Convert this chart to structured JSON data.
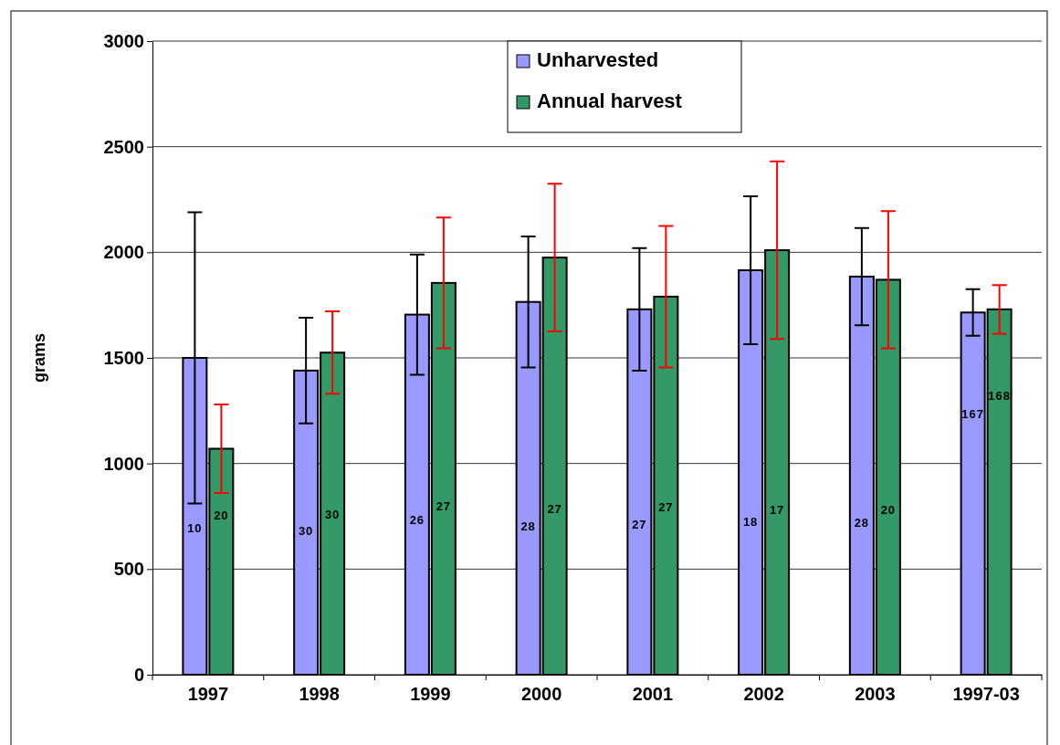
{
  "chart_data": {
    "type": "bar",
    "ylabel": "grams",
    "categories": [
      "1997",
      "1998",
      "1999",
      "2000",
      "2001",
      "2002",
      "2003",
      "1997-03"
    ],
    "series": [
      {
        "name": "Unharvested",
        "color": "#9999ff",
        "values": [
          1500,
          1440,
          1705,
          1765,
          1730,
          1915,
          1885,
          1715
        ],
        "errors": [
          690,
          250,
          285,
          310,
          290,
          350,
          230,
          110
        ]
      },
      {
        "name": "Annual harvest",
        "color": "#339966",
        "values": [
          1070,
          1525,
          1855,
          1975,
          1790,
          2010,
          1870,
          1730
        ],
        "errors": [
          210,
          195,
          310,
          350,
          335,
          420,
          325,
          115
        ]
      }
    ],
    "ylim": [
      0,
      3000
    ],
    "yticks": [
      0,
      500,
      1000,
      1500,
      2000,
      2500,
      3000
    ],
    "grid": "y",
    "legend": "top",
    "annotations": [
      {
        "text": "10",
        "x": "1997",
        "y": 690
      },
      {
        "text": "20",
        "x": "1997",
        "y": 750
      },
      {
        "text": "30",
        "x": "1998",
        "y": 675
      },
      {
        "text": "30",
        "x": "1998",
        "y": 755
      },
      {
        "text": "26",
        "x": "1999",
        "y": 730
      },
      {
        "text": "27",
        "x": "1999",
        "y": 795
      },
      {
        "text": "28",
        "x": "2000",
        "y": 700
      },
      {
        "text": "27",
        "x": "2000",
        "y": 780
      },
      {
        "text": "27",
        "x": "2001",
        "y": 705
      },
      {
        "text": "27",
        "x": "2001",
        "y": 790
      },
      {
        "text": "18",
        "x": "2002",
        "y": 720
      },
      {
        "text": "17",
        "x": "2002",
        "y": 775
      },
      {
        "text": "28",
        "x": "2003",
        "y": 715
      },
      {
        "text": "20",
        "x": "2003",
        "y": 775
      },
      {
        "text": "167",
        "x": "1997-03",
        "y": 1230
      },
      {
        "text": "168",
        "x": "1997-03",
        "y": 1315
      }
    ]
  }
}
